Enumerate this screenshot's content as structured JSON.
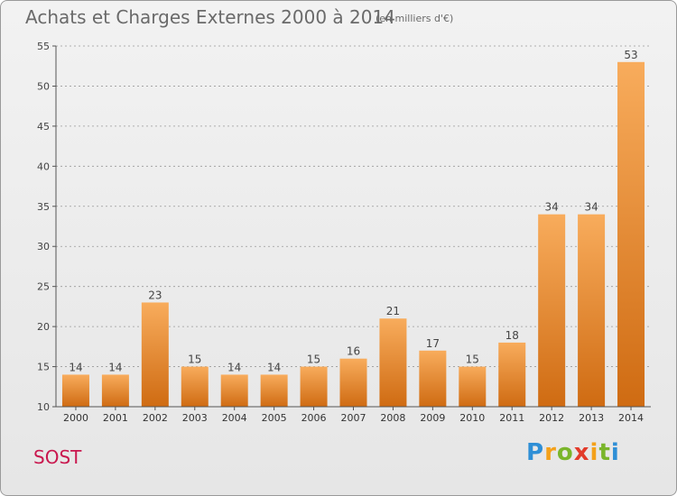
{
  "header": {
    "title": "Achats et Charges Externes 2000 à 2014",
    "unit": "(en milliers d'€)"
  },
  "footer": {
    "commune": "SOST",
    "logo": "Proxiti"
  },
  "colors": {
    "bar_light": "#f8ac5c",
    "bar_dark": "#cf6b12",
    "axis": "#555555",
    "grid": "#999999",
    "commune": "#c9174e"
  },
  "chart_data": {
    "type": "bar",
    "categories": [
      "2000",
      "2001",
      "2002",
      "2003",
      "2004",
      "2005",
      "2006",
      "2007",
      "2008",
      "2009",
      "2010",
      "2011",
      "2012",
      "2013",
      "2014"
    ],
    "values": [
      14,
      14,
      23,
      15,
      14,
      14,
      15,
      16,
      21,
      17,
      15,
      18,
      34,
      34,
      53
    ],
    "title": "Achats et Charges Externes 2000 à 2014",
    "subtitle": "(en milliers d'€)",
    "xlabel": "",
    "ylabel": "",
    "ylim": [
      10,
      55
    ],
    "yticks": [
      10,
      15,
      20,
      25,
      30,
      35,
      40,
      45,
      50,
      55
    ],
    "grid": "horizontal dashed",
    "legend": "none"
  }
}
